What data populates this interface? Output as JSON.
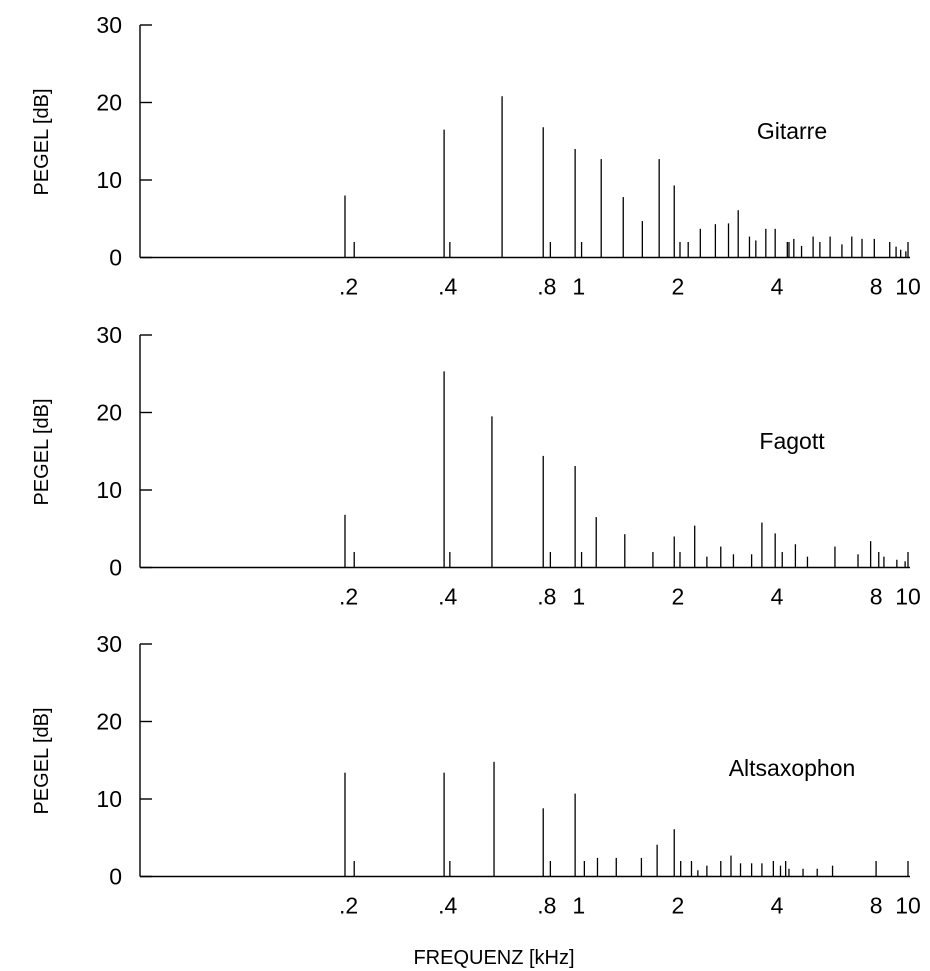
{
  "chart_data": {
    "type": "bar",
    "xlabel": "FREQUENZ [kHz]",
    "xscale": "log",
    "xlim": [
      0.0465,
      10.0
    ],
    "xticks": [
      0.2,
      0.4,
      0.8,
      1,
      2,
      4,
      8,
      10
    ],
    "xtick_labels": [
      ".2",
      ".4",
      ".8",
      "1",
      "2",
      "4",
      "8",
      "10"
    ],
    "panels": [
      {
        "title": "Gitarre",
        "ylabel": "PEGEL [dB]",
        "ylim": [
          0,
          30
        ],
        "yticks": [
          0,
          10,
          20,
          30
        ],
        "spectrum": [
          {
            "f": 0.195,
            "db": 8.0
          },
          {
            "f": 0.208,
            "db": 2.0
          },
          {
            "f": 0.39,
            "db": 16.5
          },
          {
            "f": 0.406,
            "db": 2.0
          },
          {
            "f": 0.585,
            "db": 20.8
          },
          {
            "f": 0.78,
            "db": 16.8
          },
          {
            "f": 0.82,
            "db": 2.0
          },
          {
            "f": 0.975,
            "db": 14.0
          },
          {
            "f": 1.02,
            "db": 2.0
          },
          {
            "f": 1.17,
            "db": 12.7
          },
          {
            "f": 1.365,
            "db": 7.8
          },
          {
            "f": 1.56,
            "db": 4.7
          },
          {
            "f": 1.755,
            "db": 12.7
          },
          {
            "f": 1.95,
            "db": 9.3
          },
          {
            "f": 2.03,
            "db": 2.0
          },
          {
            "f": 2.15,
            "db": 2.0
          },
          {
            "f": 2.34,
            "db": 3.7
          },
          {
            "f": 2.6,
            "db": 4.3
          },
          {
            "f": 2.85,
            "db": 4.4
          },
          {
            "f": 3.05,
            "db": 6.1
          },
          {
            "f": 3.3,
            "db": 2.7
          },
          {
            "f": 3.45,
            "db": 2.2
          },
          {
            "f": 3.7,
            "db": 3.7
          },
          {
            "f": 3.95,
            "db": 3.7
          },
          {
            "f": 4.3,
            "db": 2.0
          },
          {
            "f": 4.35,
            "db": 2.0
          },
          {
            "f": 4.5,
            "db": 2.4
          },
          {
            "f": 4.75,
            "db": 1.5
          },
          {
            "f": 5.15,
            "db": 2.7
          },
          {
            "f": 5.4,
            "db": 2.0
          },
          {
            "f": 5.8,
            "db": 2.7
          },
          {
            "f": 6.3,
            "db": 1.7
          },
          {
            "f": 6.75,
            "db": 2.7
          },
          {
            "f": 7.25,
            "db": 2.4
          },
          {
            "f": 7.9,
            "db": 2.4
          },
          {
            "f": 8.8,
            "db": 2.0
          },
          {
            "f": 9.2,
            "db": 1.4
          },
          {
            "f": 9.5,
            "db": 1.0
          },
          {
            "f": 9.85,
            "db": 0.8
          },
          {
            "f": 10.0,
            "db": 2.0
          }
        ]
      },
      {
        "title": "Fagott",
        "ylabel": "PEGEL [dB]",
        "ylim": [
          0,
          30
        ],
        "yticks": [
          0,
          10,
          20,
          30
        ],
        "spectrum": [
          {
            "f": 0.195,
            "db": 6.8
          },
          {
            "f": 0.208,
            "db": 2.0
          },
          {
            "f": 0.39,
            "db": 25.3
          },
          {
            "f": 0.406,
            "db": 2.0
          },
          {
            "f": 0.545,
            "db": 19.5
          },
          {
            "f": 0.78,
            "db": 14.4
          },
          {
            "f": 0.82,
            "db": 2.0
          },
          {
            "f": 0.975,
            "db": 13.1
          },
          {
            "f": 1.02,
            "db": 2.0
          },
          {
            "f": 1.13,
            "db": 6.5
          },
          {
            "f": 1.38,
            "db": 4.3
          },
          {
            "f": 1.68,
            "db": 2.0
          },
          {
            "f": 1.95,
            "db": 4.0
          },
          {
            "f": 2.03,
            "db": 2.0
          },
          {
            "f": 2.25,
            "db": 5.4
          },
          {
            "f": 2.45,
            "db": 1.4
          },
          {
            "f": 2.7,
            "db": 2.7
          },
          {
            "f": 2.95,
            "db": 1.7
          },
          {
            "f": 3.35,
            "db": 1.7
          },
          {
            "f": 3.6,
            "db": 5.8
          },
          {
            "f": 3.95,
            "db": 4.4
          },
          {
            "f": 4.15,
            "db": 2.0
          },
          {
            "f": 4.55,
            "db": 3.0
          },
          {
            "f": 4.95,
            "db": 1.4
          },
          {
            "f": 6.0,
            "db": 2.7
          },
          {
            "f": 7.05,
            "db": 1.7
          },
          {
            "f": 7.7,
            "db": 3.4
          },
          {
            "f": 8.15,
            "db": 2.0
          },
          {
            "f": 8.45,
            "db": 1.4
          },
          {
            "f": 9.25,
            "db": 1.0
          },
          {
            "f": 9.8,
            "db": 0.8
          },
          {
            "f": 10.0,
            "db": 2.0
          }
        ]
      },
      {
        "title": "Altsaxophon",
        "ylabel": "PEGEL [dB]",
        "ylim": [
          0,
          30
        ],
        "yticks": [
          0,
          10,
          20,
          30
        ],
        "spectrum": [
          {
            "f": 0.195,
            "db": 13.4
          },
          {
            "f": 0.208,
            "db": 2.0
          },
          {
            "f": 0.39,
            "db": 13.4
          },
          {
            "f": 0.406,
            "db": 2.0
          },
          {
            "f": 0.553,
            "db": 14.8
          },
          {
            "f": 0.78,
            "db": 8.8
          },
          {
            "f": 0.82,
            "db": 2.0
          },
          {
            "f": 0.975,
            "db": 10.7
          },
          {
            "f": 1.04,
            "db": 2.0
          },
          {
            "f": 1.14,
            "db": 2.4
          },
          {
            "f": 1.3,
            "db": 2.4
          },
          {
            "f": 1.55,
            "db": 2.4
          },
          {
            "f": 1.73,
            "db": 4.1
          },
          {
            "f": 1.95,
            "db": 6.1
          },
          {
            "f": 2.04,
            "db": 2.0
          },
          {
            "f": 2.2,
            "db": 2.0
          },
          {
            "f": 2.3,
            "db": 0.8
          },
          {
            "f": 2.45,
            "db": 1.4
          },
          {
            "f": 2.7,
            "db": 2.0
          },
          {
            "f": 2.9,
            "db": 2.7
          },
          {
            "f": 3.1,
            "db": 1.7
          },
          {
            "f": 3.35,
            "db": 1.7
          },
          {
            "f": 3.6,
            "db": 1.7
          },
          {
            "f": 3.9,
            "db": 2.0
          },
          {
            "f": 4.1,
            "db": 1.4
          },
          {
            "f": 4.25,
            "db": 2.0
          },
          {
            "f": 4.35,
            "db": 1.0
          },
          {
            "f": 4.8,
            "db": 1.0
          },
          {
            "f": 5.3,
            "db": 1.0
          },
          {
            "f": 5.9,
            "db": 1.4
          },
          {
            "f": 8.0,
            "db": 2.0
          },
          {
            "f": 10.0,
            "db": 2.0
          }
        ]
      }
    ]
  }
}
